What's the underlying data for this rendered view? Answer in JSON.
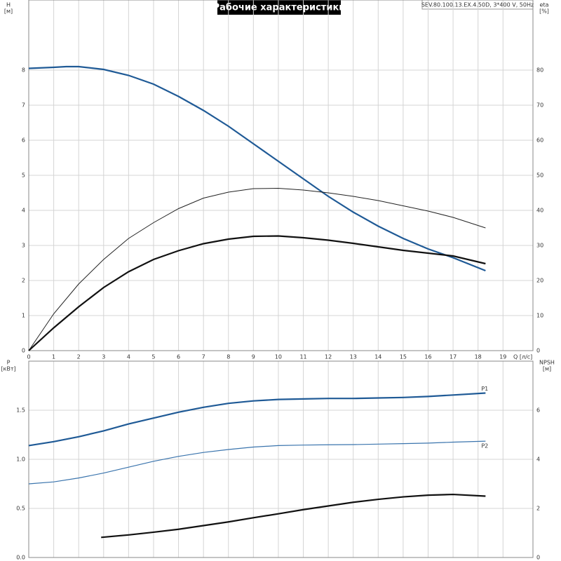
{
  "chart_data": [
    {
      "type": "line",
      "title": "Рабочие характеристики",
      "subtitle": "SEV.80.100.13.EX.4.50D, 3*400 V, 50Hz",
      "y_label": "H",
      "y_unit": "[м]",
      "y2_label": "eta",
      "y2_unit": "[%]",
      "x_label": "Q [л/с]",
      "xlim": [
        0,
        20.2
      ],
      "xticks": [
        0,
        1,
        2,
        3,
        4,
        5,
        6,
        7,
        8,
        9,
        10,
        11,
        12,
        13,
        14,
        15,
        16,
        17,
        18,
        19
      ],
      "ylim": [
        0,
        10
      ],
      "yticks": [
        0,
        1,
        2,
        3,
        4,
        5,
        6,
        7,
        8
      ],
      "y2lim": [
        0,
        100
      ],
      "y2ticks": [
        0,
        10,
        20,
        30,
        40,
        50,
        60,
        70,
        80
      ],
      "grid": true,
      "series": [
        {
          "color": "#1f5a96",
          "x": [
            0,
            1,
            1.5,
            2,
            3,
            4,
            5,
            6,
            7,
            8,
            9,
            10,
            11,
            12,
            13,
            14,
            15,
            16,
            17,
            18.3
          ],
          "values": [
            8.05,
            8.08,
            8.1,
            8.1,
            8.02,
            7.85,
            7.6,
            7.25,
            6.85,
            6.4,
            5.9,
            5.4,
            4.9,
            4.4,
            3.95,
            3.55,
            3.2,
            2.9,
            2.65,
            2.28
          ]
        },
        {
          "color": "#222222",
          "axis": "y2",
          "x": [
            0,
            1,
            2,
            3,
            4,
            5,
            6,
            7,
            8,
            9,
            10,
            11,
            12,
            13,
            14,
            15,
            16,
            17,
            18.3
          ],
          "values": [
            0,
            10.5,
            19,
            26,
            32,
            36.5,
            40.5,
            43.5,
            45.2,
            46.2,
            46.3,
            45.8,
            45,
            44,
            42.8,
            41.3,
            39.8,
            38,
            35
          ]
        },
        {
          "color": "#111111",
          "axis": "y2",
          "x": [
            0,
            1,
            2,
            3,
            4,
            5,
            6,
            7,
            8,
            9,
            10,
            11,
            12,
            13,
            14,
            15,
            16,
            17,
            18.3
          ],
          "values": [
            0,
            6.5,
            12.5,
            18,
            22.5,
            26,
            28.5,
            30.5,
            31.8,
            32.6,
            32.7,
            32.2,
            31.5,
            30.6,
            29.6,
            28.6,
            27.8,
            27,
            24.8
          ]
        }
      ]
    },
    {
      "type": "line",
      "y_label": "P",
      "y_unit": "[кВт]",
      "y2_label": "NPSH",
      "y2_unit": "[м]",
      "xlim": [
        0,
        20.2
      ],
      "ylim": [
        0,
        2
      ],
      "yticks": [
        {
          "value": 0,
          "label": "0.0"
        },
        0.5,
        {
          "value": 1,
          "label": "1.0"
        },
        1.5
      ],
      "y2lim": [
        0,
        8
      ],
      "y2ticks": [
        0,
        2,
        4,
        6
      ],
      "grid": true,
      "series": [
        {
          "name": "P1",
          "color": "#1f5a96",
          "x": [
            0,
            1,
            2,
            3,
            4,
            5,
            6,
            7,
            8,
            9,
            10,
            11,
            12,
            13,
            14,
            15,
            16,
            17,
            18.3
          ],
          "values": [
            1.14,
            1.18,
            1.23,
            1.29,
            1.36,
            1.42,
            1.48,
            1.53,
            1.57,
            1.595,
            1.61,
            1.615,
            1.62,
            1.62,
            1.625,
            1.63,
            1.64,
            1.655,
            1.675
          ]
        },
        {
          "name": "P2",
          "color": "#3a74ad",
          "x": [
            0,
            1,
            2,
            3,
            4,
            5,
            6,
            7,
            8,
            9,
            10,
            11,
            12,
            13,
            14,
            15,
            16,
            17,
            18.3
          ],
          "values": [
            0.75,
            0.77,
            0.81,
            0.86,
            0.92,
            0.98,
            1.03,
            1.07,
            1.1,
            1.125,
            1.14,
            1.145,
            1.148,
            1.15,
            1.155,
            1.16,
            1.165,
            1.175,
            1.185
          ]
        },
        {
          "color": "#111111",
          "axis": "y2",
          "x": [
            2.9,
            4,
            5,
            6,
            7,
            8,
            9,
            10,
            11,
            12,
            13,
            14,
            15,
            16,
            17,
            18.3
          ],
          "values": [
            0.82,
            0.92,
            1.03,
            1.15,
            1.3,
            1.45,
            1.62,
            1.78,
            1.95,
            2.1,
            2.25,
            2.37,
            2.47,
            2.54,
            2.57,
            2.5
          ]
        }
      ]
    }
  ]
}
